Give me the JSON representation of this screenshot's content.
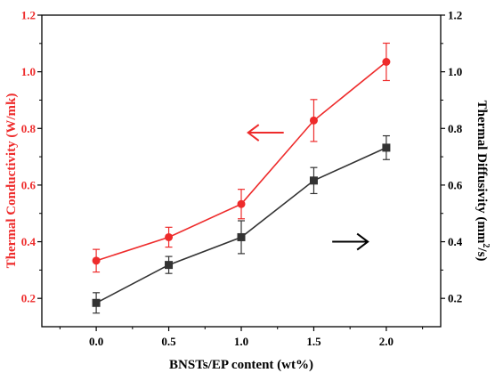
{
  "chart_data": {
    "type": "line",
    "x": [
      0.0,
      0.5,
      1.0,
      1.5,
      2.0
    ],
    "xlabel": "BNSTs/EP content (wt%)",
    "xlim": [
      -0.375,
      2.375
    ],
    "x_ticks": [
      "0.0",
      "0.5",
      "1.0",
      "1.5",
      "2.0"
    ],
    "ylabel_left": "Thermal Conductivity (W/mk)",
    "ylabel_right_parts": [
      "Thermal Diffusivity (mm",
      "2",
      "/s)"
    ],
    "ylim_left": [
      0.1,
      1.2
    ],
    "ylim_right": [
      0.1,
      1.2
    ],
    "y_ticks_left": [
      "0.2",
      "0.4",
      "0.6",
      "0.8",
      "1.0",
      "1.2"
    ],
    "y_ticks_right": [
      "0.2",
      "0.4",
      "0.6",
      "0.8",
      "1.0",
      "1.2"
    ],
    "grid": false,
    "legend": "none",
    "series": [
      {
        "axis": "left",
        "color": "#ee2b2b",
        "marker": "circle",
        "values": [
          0.333,
          0.416,
          0.533,
          0.828,
          1.035
        ],
        "errors": [
          0.04,
          0.035,
          0.052,
          0.074,
          0.066
        ]
      },
      {
        "axis": "right",
        "color": "#333333",
        "marker": "square",
        "values": [
          0.184,
          0.318,
          0.416,
          0.616,
          0.732
        ],
        "errors": [
          0.036,
          0.03,
          0.058,
          0.046,
          0.042
        ]
      }
    ],
    "annotations": [
      {
        "type": "arrow",
        "direction": "left",
        "color": "#ee2b2b",
        "points_to_axis": "left",
        "at": [
          1.17,
          0.785
        ]
      },
      {
        "type": "arrow",
        "direction": "right",
        "color": "#000000",
        "points_to_axis": "right",
        "at": [
          1.75,
          0.4
        ]
      }
    ]
  }
}
